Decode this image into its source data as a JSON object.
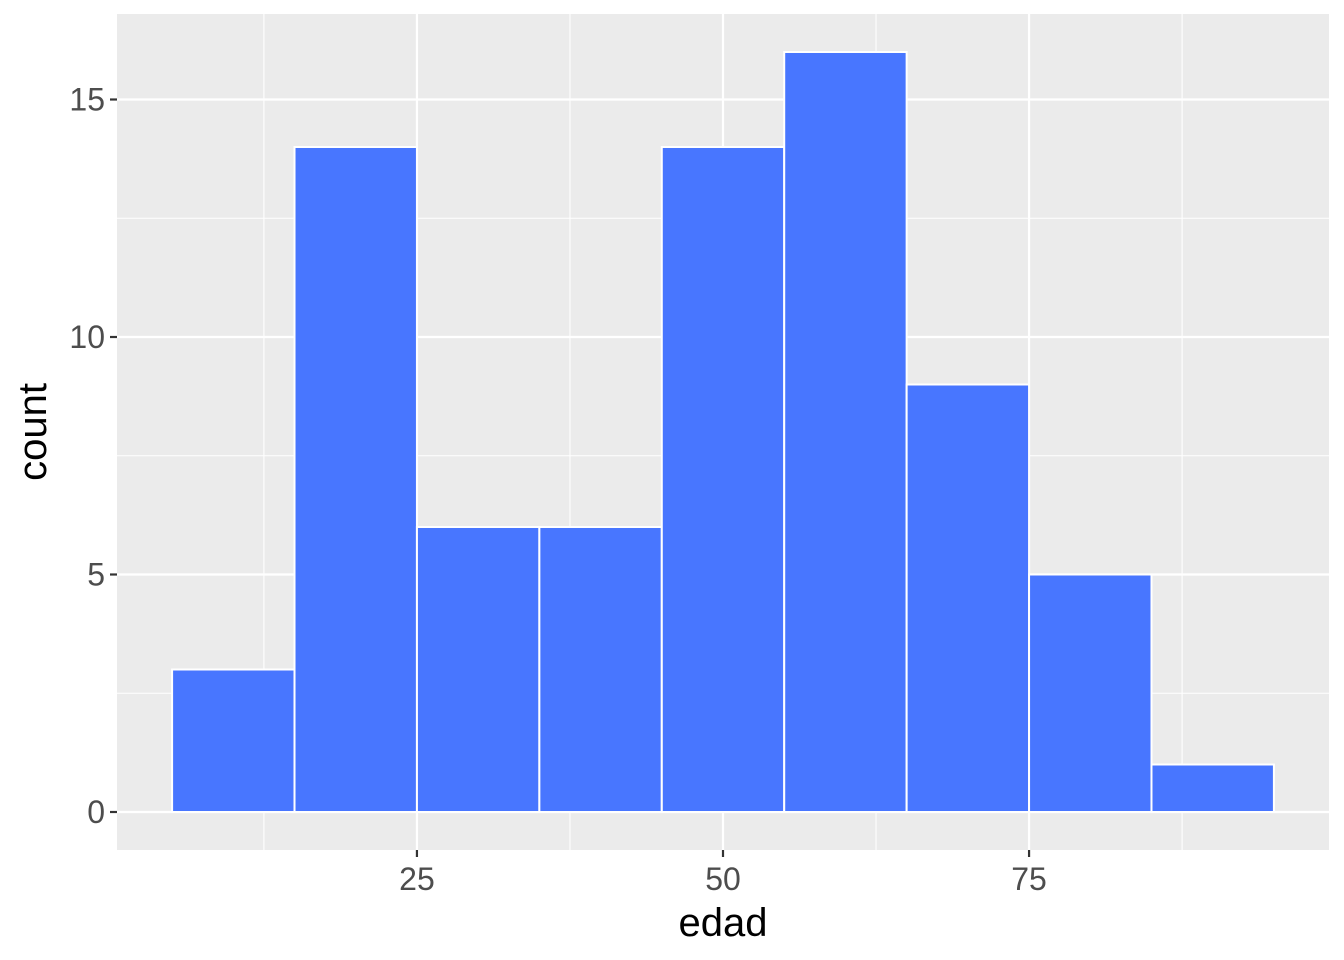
{
  "chart_data": {
    "type": "bar",
    "subtype": "histogram",
    "xlabel": "edad",
    "ylabel": "count",
    "bins": [
      {
        "x_start": 5,
        "x_end": 15,
        "count": 3
      },
      {
        "x_start": 15,
        "x_end": 25,
        "count": 14
      },
      {
        "x_start": 25,
        "x_end": 35,
        "count": 6
      },
      {
        "x_start": 35,
        "x_end": 45,
        "count": 6
      },
      {
        "x_start": 45,
        "x_end": 55,
        "count": 14
      },
      {
        "x_start": 55,
        "x_end": 65,
        "count": 16
      },
      {
        "x_start": 65,
        "x_end": 75,
        "count": 9
      },
      {
        "x_start": 75,
        "x_end": 85,
        "count": 5
      },
      {
        "x_start": 85,
        "x_end": 95,
        "count": 1
      }
    ],
    "xlim": [
      0.5,
      99.5
    ],
    "ylim": [
      -0.8,
      16.8
    ],
    "x_ticks": [
      25,
      50,
      75
    ],
    "x_tick_labels": [
      "25",
      "50",
      "75"
    ],
    "x_minor_ticks": [
      12.5,
      37.5,
      62.5,
      87.5
    ],
    "y_ticks": [
      0,
      5,
      10,
      15
    ],
    "y_tick_labels": [
      "0",
      "5",
      "10",
      "15"
    ],
    "y_minor_ticks": [
      2.5,
      7.5,
      12.5
    ],
    "grid": true,
    "legend": false,
    "colors": {
      "bar_fill": "#4876FF",
      "bar_outline": "#FFFFFF",
      "panel_background": "#EBEBEB",
      "grid_line": "#FFFFFF"
    }
  }
}
